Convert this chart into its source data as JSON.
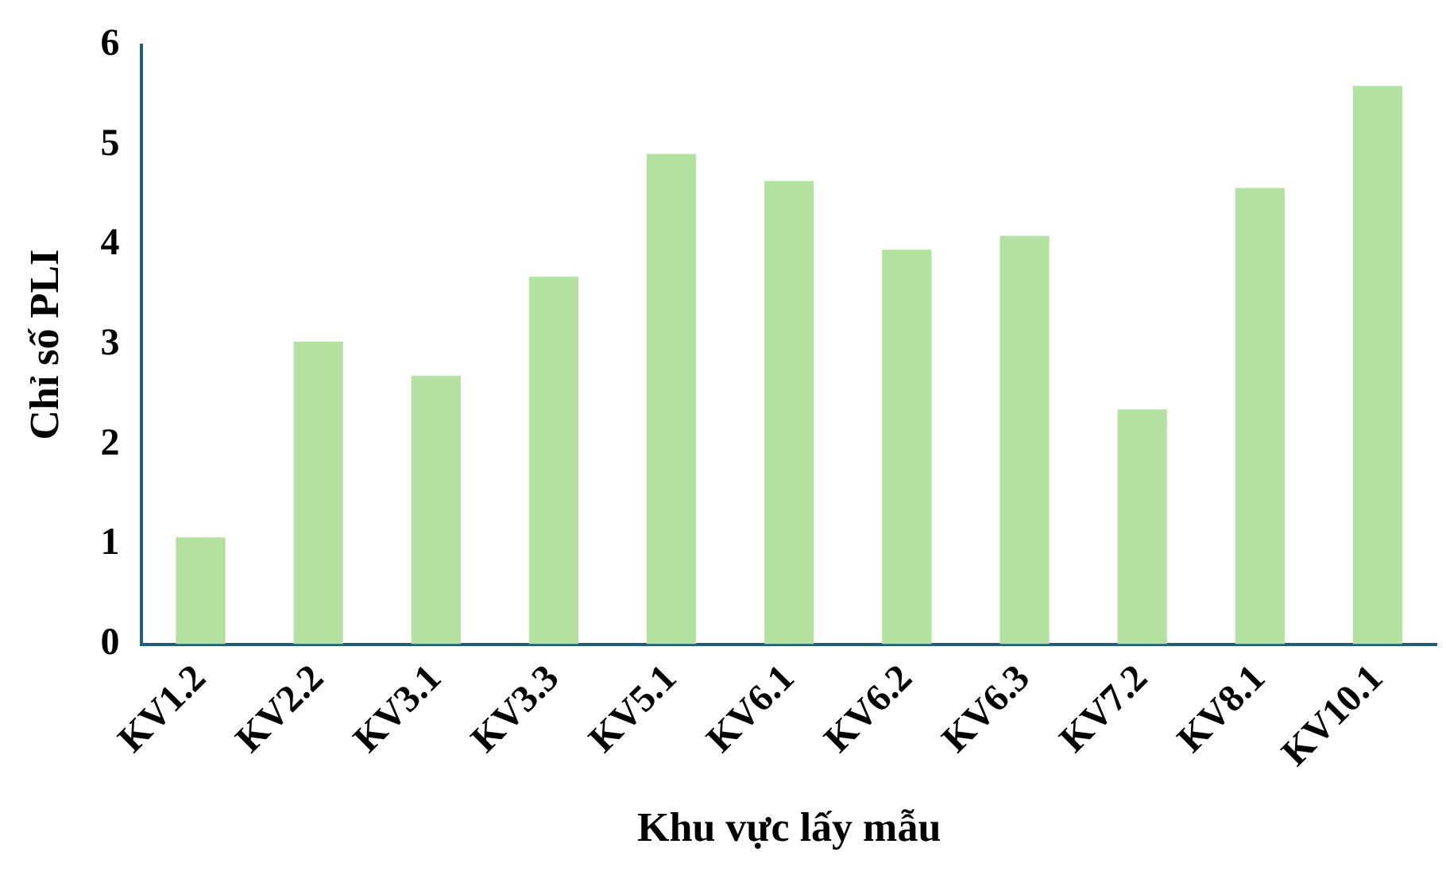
{
  "chart_data": {
    "type": "bar",
    "xlabel": "Khu vực lấy mẫu",
    "ylabel": "Chỉ số PLI",
    "categories": [
      "KV1.2",
      "KV2.2",
      "KV3.1",
      "KV3.3",
      "KV5.1",
      "KV6.1",
      "KV6.2",
      "KV6.3",
      "KV7.2",
      "KV8.1",
      "KV10.1"
    ],
    "values": [
      1.07,
      3.03,
      2.69,
      3.68,
      4.91,
      4.64,
      3.95,
      4.09,
      2.35,
      4.57,
      5.59
    ],
    "color": "#b3e2a0",
    "ylim": [
      0,
      6
    ],
    "yticks": [
      0,
      1,
      2,
      3,
      4,
      5,
      6
    ],
    "grid": false,
    "legend": false
  }
}
